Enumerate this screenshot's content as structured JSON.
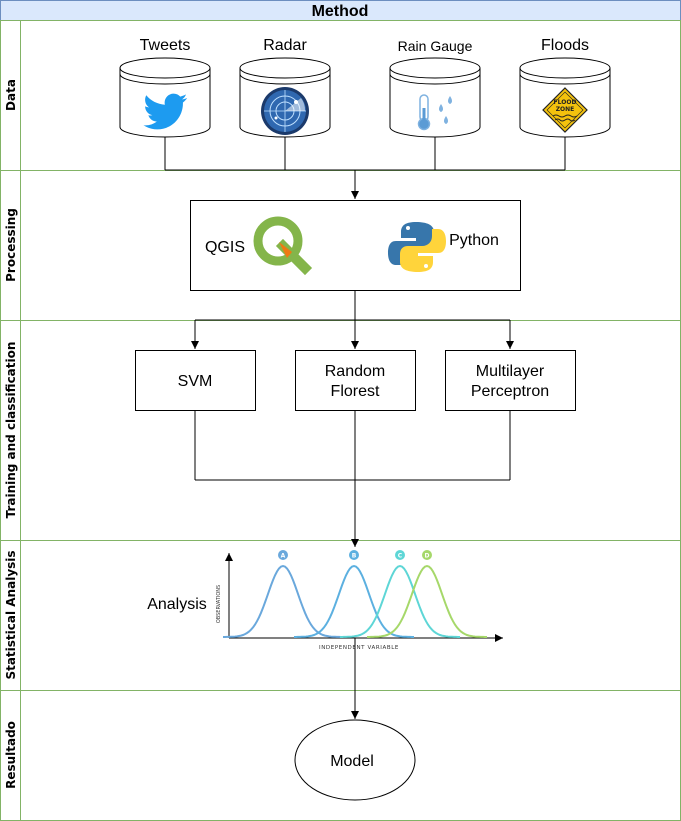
{
  "title": "Method",
  "lanes": [
    {
      "label": "Data"
    },
    {
      "label": "Processing"
    },
    {
      "label": "Training and classification"
    },
    {
      "label": "Statistical Analysis"
    },
    {
      "label": "Resultado"
    }
  ],
  "data_sources": [
    {
      "label": "Tweets",
      "icon": "twitter-bird-icon"
    },
    {
      "label": "Radar",
      "icon": "radar-icon"
    },
    {
      "label": "Rain Gauge",
      "icon": "thermometer-rain-icon"
    },
    {
      "label": "Floods",
      "icon": "flood-zone-sign-icon"
    }
  ],
  "flood_sign": {
    "line1": "FLOOD",
    "line2": "ZONE"
  },
  "processing": {
    "qgis_label": "QGIS",
    "python_label": "Python"
  },
  "classifiers": [
    {
      "lines": [
        "SVM"
      ]
    },
    {
      "lines": [
        "Random",
        "Florest"
      ]
    },
    {
      "lines": [
        "Multilayer",
        "Perceptron"
      ]
    }
  ],
  "analysis": {
    "label": "Analysis",
    "xlabel": "INDEPENDENT VARIABLE",
    "ylabel": "OBSERVATIONS",
    "curves": [
      {
        "name": "A",
        "color": "#6aa8dc"
      },
      {
        "name": "B",
        "color": "#5cb0e0"
      },
      {
        "name": "C",
        "color": "#5ed6d6"
      },
      {
        "name": "D",
        "color": "#a6d86a"
      }
    ]
  },
  "result": {
    "label": "Model"
  },
  "colors": {
    "lane_border": "#82b366",
    "title_bg": "#dae8fc",
    "title_border": "#6c8ebf",
    "stroke": "#000000"
  }
}
